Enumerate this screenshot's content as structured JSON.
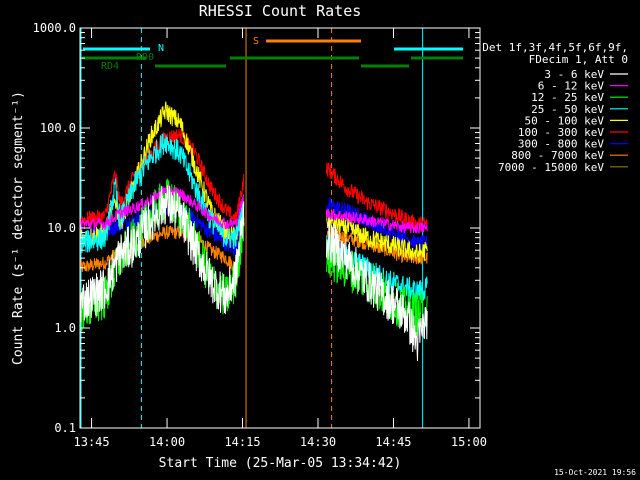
{
  "chart_data": {
    "type": "line",
    "title": "RHESSI Count Rates",
    "xlabel": "Start Time (25-Mar-05 13:34:42)",
    "ylabel": "Count Rate (s⁻¹ detector segment⁻¹)",
    "yscale": "log",
    "ylim": [
      0.1,
      1000
    ],
    "xlim_minutes": [
      13.0,
      92.5
    ],
    "y_tick_labels": [
      "0.1",
      "1.0",
      "10.0",
      "100.0",
      "1000.0"
    ],
    "y_tick_values": [
      0.1,
      1,
      10,
      100,
      1000
    ],
    "x_tick_labels": [
      "13:45",
      "14:00",
      "14:15",
      "14:30",
      "14:45",
      "15:00"
    ],
    "x_tick_minutes": [
      15.3,
      30.3,
      45.3,
      60.3,
      75.3,
      90.3
    ],
    "legend_header": [
      "Det 1f,3f,4f,5f,6f,9f,",
      "FDecim 1, Att 0"
    ],
    "footer_date": "15-Oct-2021 19:56",
    "data_gap_minutes": [
      52.5,
      62.0
    ],
    "series": [
      {
        "name": "3 - 6 keV",
        "color": "#ffffff",
        "points": [
          [
            13,
            1.8
          ],
          [
            18,
            2.5
          ],
          [
            21,
            5.5
          ],
          [
            24,
            7
          ],
          [
            27,
            12
          ],
          [
            30,
            18
          ],
          [
            33,
            13
          ],
          [
            36,
            6
          ],
          [
            39,
            3
          ],
          [
            42,
            2
          ],
          [
            44,
            3.5
          ],
          [
            45.5,
            14
          ],
          [
            62,
            8
          ],
          [
            66,
            5
          ],
          [
            70,
            3
          ],
          [
            74,
            2
          ],
          [
            78,
            1.3
          ],
          [
            80,
            0.7
          ],
          [
            82,
            1.3
          ]
        ]
      },
      {
        "name": "6 - 12 keV",
        "color": "#ff00ff",
        "points": [
          [
            13,
            11
          ],
          [
            18,
            11
          ],
          [
            21,
            14
          ],
          [
            24,
            16
          ],
          [
            27,
            19
          ],
          [
            30,
            24
          ],
          [
            33,
            22
          ],
          [
            36,
            17
          ],
          [
            39,
            13
          ],
          [
            42,
            11
          ],
          [
            44,
            11
          ],
          [
            45.5,
            20
          ],
          [
            62,
            14
          ],
          [
            66,
            13
          ],
          [
            70,
            12
          ],
          [
            74,
            11
          ],
          [
            78,
            10
          ],
          [
            80,
            10
          ],
          [
            82,
            10
          ]
        ]
      },
      {
        "name": "12 - 25 keV",
        "color": "#00ff00",
        "points": [
          [
            13,
            1.5
          ],
          [
            18,
            2
          ],
          [
            21,
            5
          ],
          [
            24,
            8
          ],
          [
            27,
            13
          ],
          [
            30,
            20
          ],
          [
            33,
            15
          ],
          [
            36,
            7
          ],
          [
            39,
            3
          ],
          [
            42,
            2
          ],
          [
            44,
            3
          ],
          [
            45.5,
            12
          ],
          [
            62,
            5
          ],
          [
            66,
            4
          ],
          [
            70,
            3
          ],
          [
            74,
            2
          ],
          [
            78,
            1.5
          ],
          [
            80,
            1.4
          ],
          [
            82,
            1.5
          ]
        ]
      },
      {
        "name": "25 - 50 keV",
        "color": "#00ffff",
        "points": [
          [
            13,
            7
          ],
          [
            18,
            8
          ],
          [
            20,
            25
          ],
          [
            21,
            12
          ],
          [
            24,
            28
          ],
          [
            27,
            50
          ],
          [
            30,
            75
          ],
          [
            33,
            55
          ],
          [
            36,
            25
          ],
          [
            39,
            12
          ],
          [
            42,
            8
          ],
          [
            44,
            8
          ],
          [
            45.5,
            17
          ],
          [
            62,
            7
          ],
          [
            66,
            5
          ],
          [
            70,
            4
          ],
          [
            74,
            3
          ],
          [
            78,
            2.5
          ],
          [
            80,
            2.3
          ],
          [
            82,
            2.5
          ]
        ]
      },
      {
        "name": "50 - 100 keV",
        "color": "#ffff00",
        "points": [
          [
            13,
            8
          ],
          [
            18,
            9
          ],
          [
            20,
            20
          ],
          [
            21,
            11
          ],
          [
            24,
            30
          ],
          [
            27,
            80
          ],
          [
            30,
            150
          ],
          [
            33,
            110
          ],
          [
            36,
            40
          ],
          [
            39,
            15
          ],
          [
            42,
            9
          ],
          [
            44,
            8
          ],
          [
            45.5,
            14
          ],
          [
            62,
            12
          ],
          [
            66,
            10
          ],
          [
            70,
            8
          ],
          [
            74,
            7
          ],
          [
            78,
            6
          ],
          [
            80,
            5.5
          ],
          [
            82,
            6
          ]
        ]
      },
      {
        "name": "100 - 300 keV",
        "color": "#ff0000",
        "points": [
          [
            13,
            12
          ],
          [
            18,
            13
          ],
          [
            20,
            35
          ],
          [
            21,
            17
          ],
          [
            24,
            35
          ],
          [
            27,
            55
          ],
          [
            30,
            80
          ],
          [
            33,
            85
          ],
          [
            36,
            55
          ],
          [
            39,
            25
          ],
          [
            42,
            15
          ],
          [
            44,
            12
          ],
          [
            45.5,
            30
          ],
          [
            62,
            40
          ],
          [
            66,
            25
          ],
          [
            70,
            18
          ],
          [
            74,
            15
          ],
          [
            78,
            12
          ],
          [
            80,
            11
          ],
          [
            82,
            11
          ]
        ]
      },
      {
        "name": "300 - 800 keV",
        "color": "#0000ff",
        "points": [
          [
            13,
            8
          ],
          [
            18,
            9
          ],
          [
            21,
            11
          ],
          [
            24,
            12
          ],
          [
            27,
            14
          ],
          [
            30,
            16
          ],
          [
            33,
            15
          ],
          [
            36,
            12
          ],
          [
            39,
            9
          ],
          [
            42,
            7
          ],
          [
            44,
            6
          ],
          [
            45.5,
            20
          ],
          [
            62,
            17
          ],
          [
            66,
            15
          ],
          [
            70,
            12
          ],
          [
            74,
            9
          ],
          [
            78,
            8
          ],
          [
            80,
            7
          ],
          [
            82,
            7
          ]
        ]
      },
      {
        "name": "800 - 7000 keV",
        "color": "#ff8000",
        "points": [
          [
            13,
            4
          ],
          [
            18,
            4.5
          ],
          [
            21,
            6
          ],
          [
            24,
            7
          ],
          [
            27,
            8
          ],
          [
            30,
            9
          ],
          [
            33,
            9
          ],
          [
            36,
            8
          ],
          [
            39,
            6
          ],
          [
            42,
            5
          ],
          [
            44,
            4
          ],
          [
            45.5,
            10
          ],
          [
            62,
            9
          ],
          [
            66,
            8
          ],
          [
            70,
            7
          ],
          [
            74,
            6
          ],
          [
            78,
            5
          ],
          [
            80,
            5
          ],
          [
            82,
            5
          ]
        ]
      },
      {
        "name": "7000 - 15000 keV",
        "color": "#808000",
        "points": []
      }
    ],
    "annotations": {
      "attenuator": {
        "label": "S",
        "color": "#ff8000"
      },
      "night": {
        "label": "N",
        "color": "#00ffff"
      },
      "decimation_0": {
        "label": "RD0",
        "color": "#008000"
      },
      "decimation_4": {
        "label": "RD4",
        "color": "#008000"
      }
    }
  }
}
